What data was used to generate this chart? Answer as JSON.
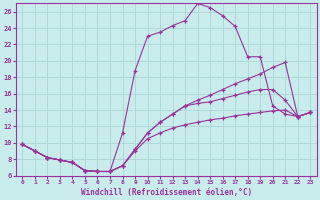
{
  "xlabel": "Windchill (Refroidissement éolien,°C)",
  "bg_color": "#c8ecec",
  "grid_color": "#b0d8d8",
  "line_color": "#993399",
  "xlim": [
    -0.5,
    23.5
  ],
  "ylim": [
    6,
    27
  ],
  "xticks": [
    0,
    1,
    2,
    3,
    4,
    5,
    6,
    7,
    8,
    9,
    10,
    11,
    12,
    13,
    14,
    15,
    16,
    17,
    18,
    19,
    20,
    21,
    22,
    23
  ],
  "yticks": [
    6,
    8,
    10,
    12,
    14,
    16,
    18,
    20,
    22,
    24,
    26
  ],
  "line_upper_x": [
    0,
    1,
    2,
    3,
    4,
    5,
    6,
    7,
    8,
    9,
    10,
    11,
    12,
    13,
    14,
    15,
    16,
    17,
    18,
    19,
    20,
    21,
    22,
    23
  ],
  "line_upper_y": [
    9.8,
    9.0,
    8.2,
    7.9,
    7.6,
    6.6,
    6.5,
    6.5,
    11.2,
    18.8,
    23.0,
    23.5,
    24.3,
    24.9,
    27.0,
    26.5,
    25.5,
    24.2,
    20.5,
    20.5,
    14.5,
    13.5,
    13.2,
    13.7
  ],
  "line_mid1_x": [
    0,
    1,
    2,
    3,
    4,
    5,
    6,
    7,
    8,
    9,
    10,
    11,
    12,
    13,
    14,
    15,
    16,
    17,
    18,
    19,
    20,
    21,
    22,
    23
  ],
  "line_mid1_y": [
    9.8,
    9.0,
    8.2,
    7.9,
    7.6,
    6.6,
    6.5,
    6.5,
    7.2,
    9.2,
    11.2,
    12.5,
    13.5,
    14.5,
    15.2,
    15.8,
    16.5,
    17.2,
    17.8,
    18.4,
    19.2,
    19.8,
    13.2,
    13.7
  ],
  "line_mid2_x": [
    0,
    1,
    2,
    3,
    4,
    5,
    6,
    7,
    8,
    9,
    10,
    11,
    12,
    13,
    14,
    15,
    16,
    17,
    18,
    19,
    20,
    21,
    22,
    23
  ],
  "line_mid2_y": [
    9.8,
    9.0,
    8.2,
    7.9,
    7.6,
    6.6,
    6.5,
    6.5,
    7.2,
    9.2,
    11.2,
    12.5,
    13.5,
    14.5,
    14.8,
    15.0,
    15.4,
    15.8,
    16.2,
    16.5,
    16.5,
    15.2,
    13.2,
    13.7
  ],
  "line_lower_x": [
    0,
    1,
    2,
    3,
    4,
    5,
    6,
    7,
    8,
    9,
    10,
    11,
    12,
    13,
    14,
    15,
    16,
    17,
    18,
    19,
    20,
    21,
    22,
    23
  ],
  "line_lower_y": [
    9.8,
    9.0,
    8.2,
    7.9,
    7.6,
    6.6,
    6.5,
    6.5,
    7.2,
    9.0,
    10.5,
    11.2,
    11.8,
    12.2,
    12.5,
    12.8,
    13.0,
    13.3,
    13.5,
    13.7,
    13.9,
    14.0,
    13.2,
    13.7
  ]
}
